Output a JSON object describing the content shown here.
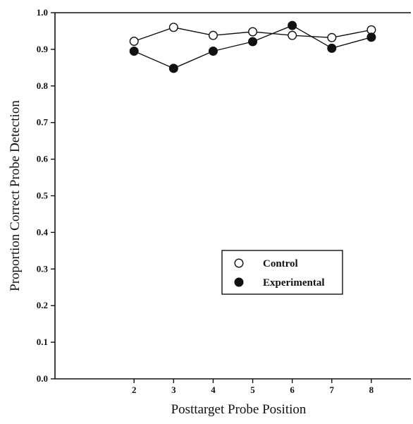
{
  "chart_data": {
    "type": "line",
    "title": "",
    "xlabel": "Posttarget Probe Position",
    "ylabel": "Proportion Correct Probe Detection",
    "x": [
      2,
      3,
      4,
      5,
      6,
      7,
      8
    ],
    "xlim": [
      0,
      9
    ],
    "ylim": [
      0.0,
      1.0
    ],
    "xticks": [
      "2",
      "3",
      "4",
      "5",
      "6",
      "7",
      "8"
    ],
    "yticks": [
      "0.0",
      "0.1",
      "0.2",
      "0.3",
      "0.4",
      "0.5",
      "0.6",
      "0.7",
      "0.8",
      "0.9",
      "1.0"
    ],
    "grid": false,
    "legend_position": "lower-right",
    "series": [
      {
        "name": "Control",
        "marker": "open-circle",
        "values": [
          0.922,
          0.96,
          0.938,
          0.948,
          0.938,
          0.932,
          0.953
        ]
      },
      {
        "name": "Experimental",
        "marker": "filled-circle",
        "values": [
          0.895,
          0.848,
          0.895,
          0.921,
          0.965,
          0.903,
          0.933
        ]
      }
    ]
  },
  "colors": {
    "line": "#111111",
    "marker_fill_open": "#ffffff",
    "marker_fill_filled": "#111111"
  }
}
